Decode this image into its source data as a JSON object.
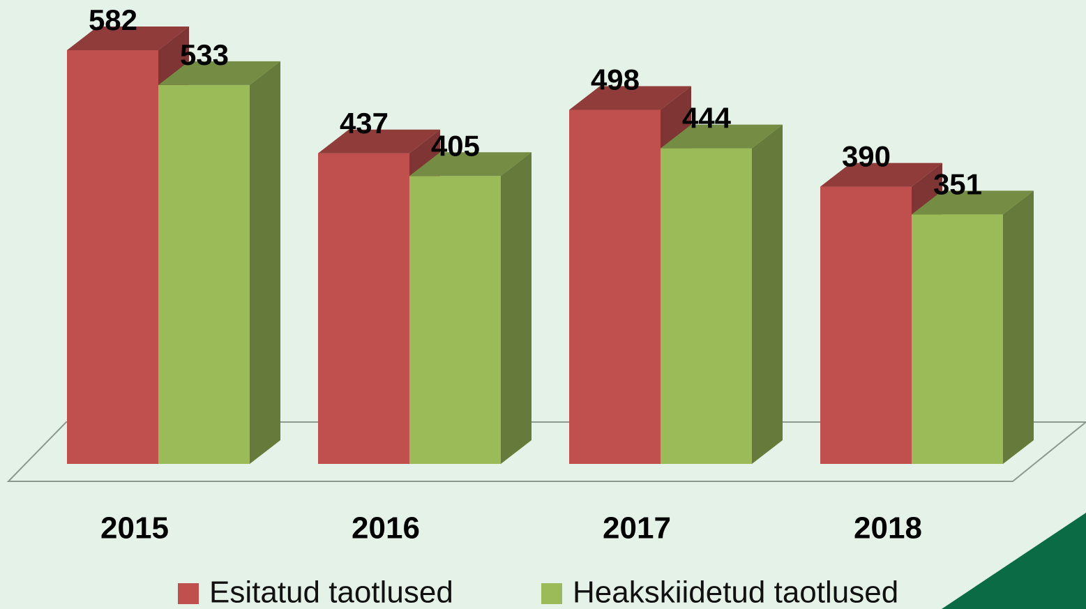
{
  "chart_data": {
    "type": "bar3d",
    "categories": [
      "2015",
      "2016",
      "2017",
      "2018"
    ],
    "series": [
      {
        "name": "Esitatud taotlused",
        "color": "#c0504d",
        "values": [
          582,
          437,
          498,
          390
        ]
      },
      {
        "name": "Heakskiidetud taotlused",
        "color": "#9bbb59",
        "values": [
          533,
          405,
          444,
          351
        ]
      }
    ],
    "legend": "bottom"
  }
}
